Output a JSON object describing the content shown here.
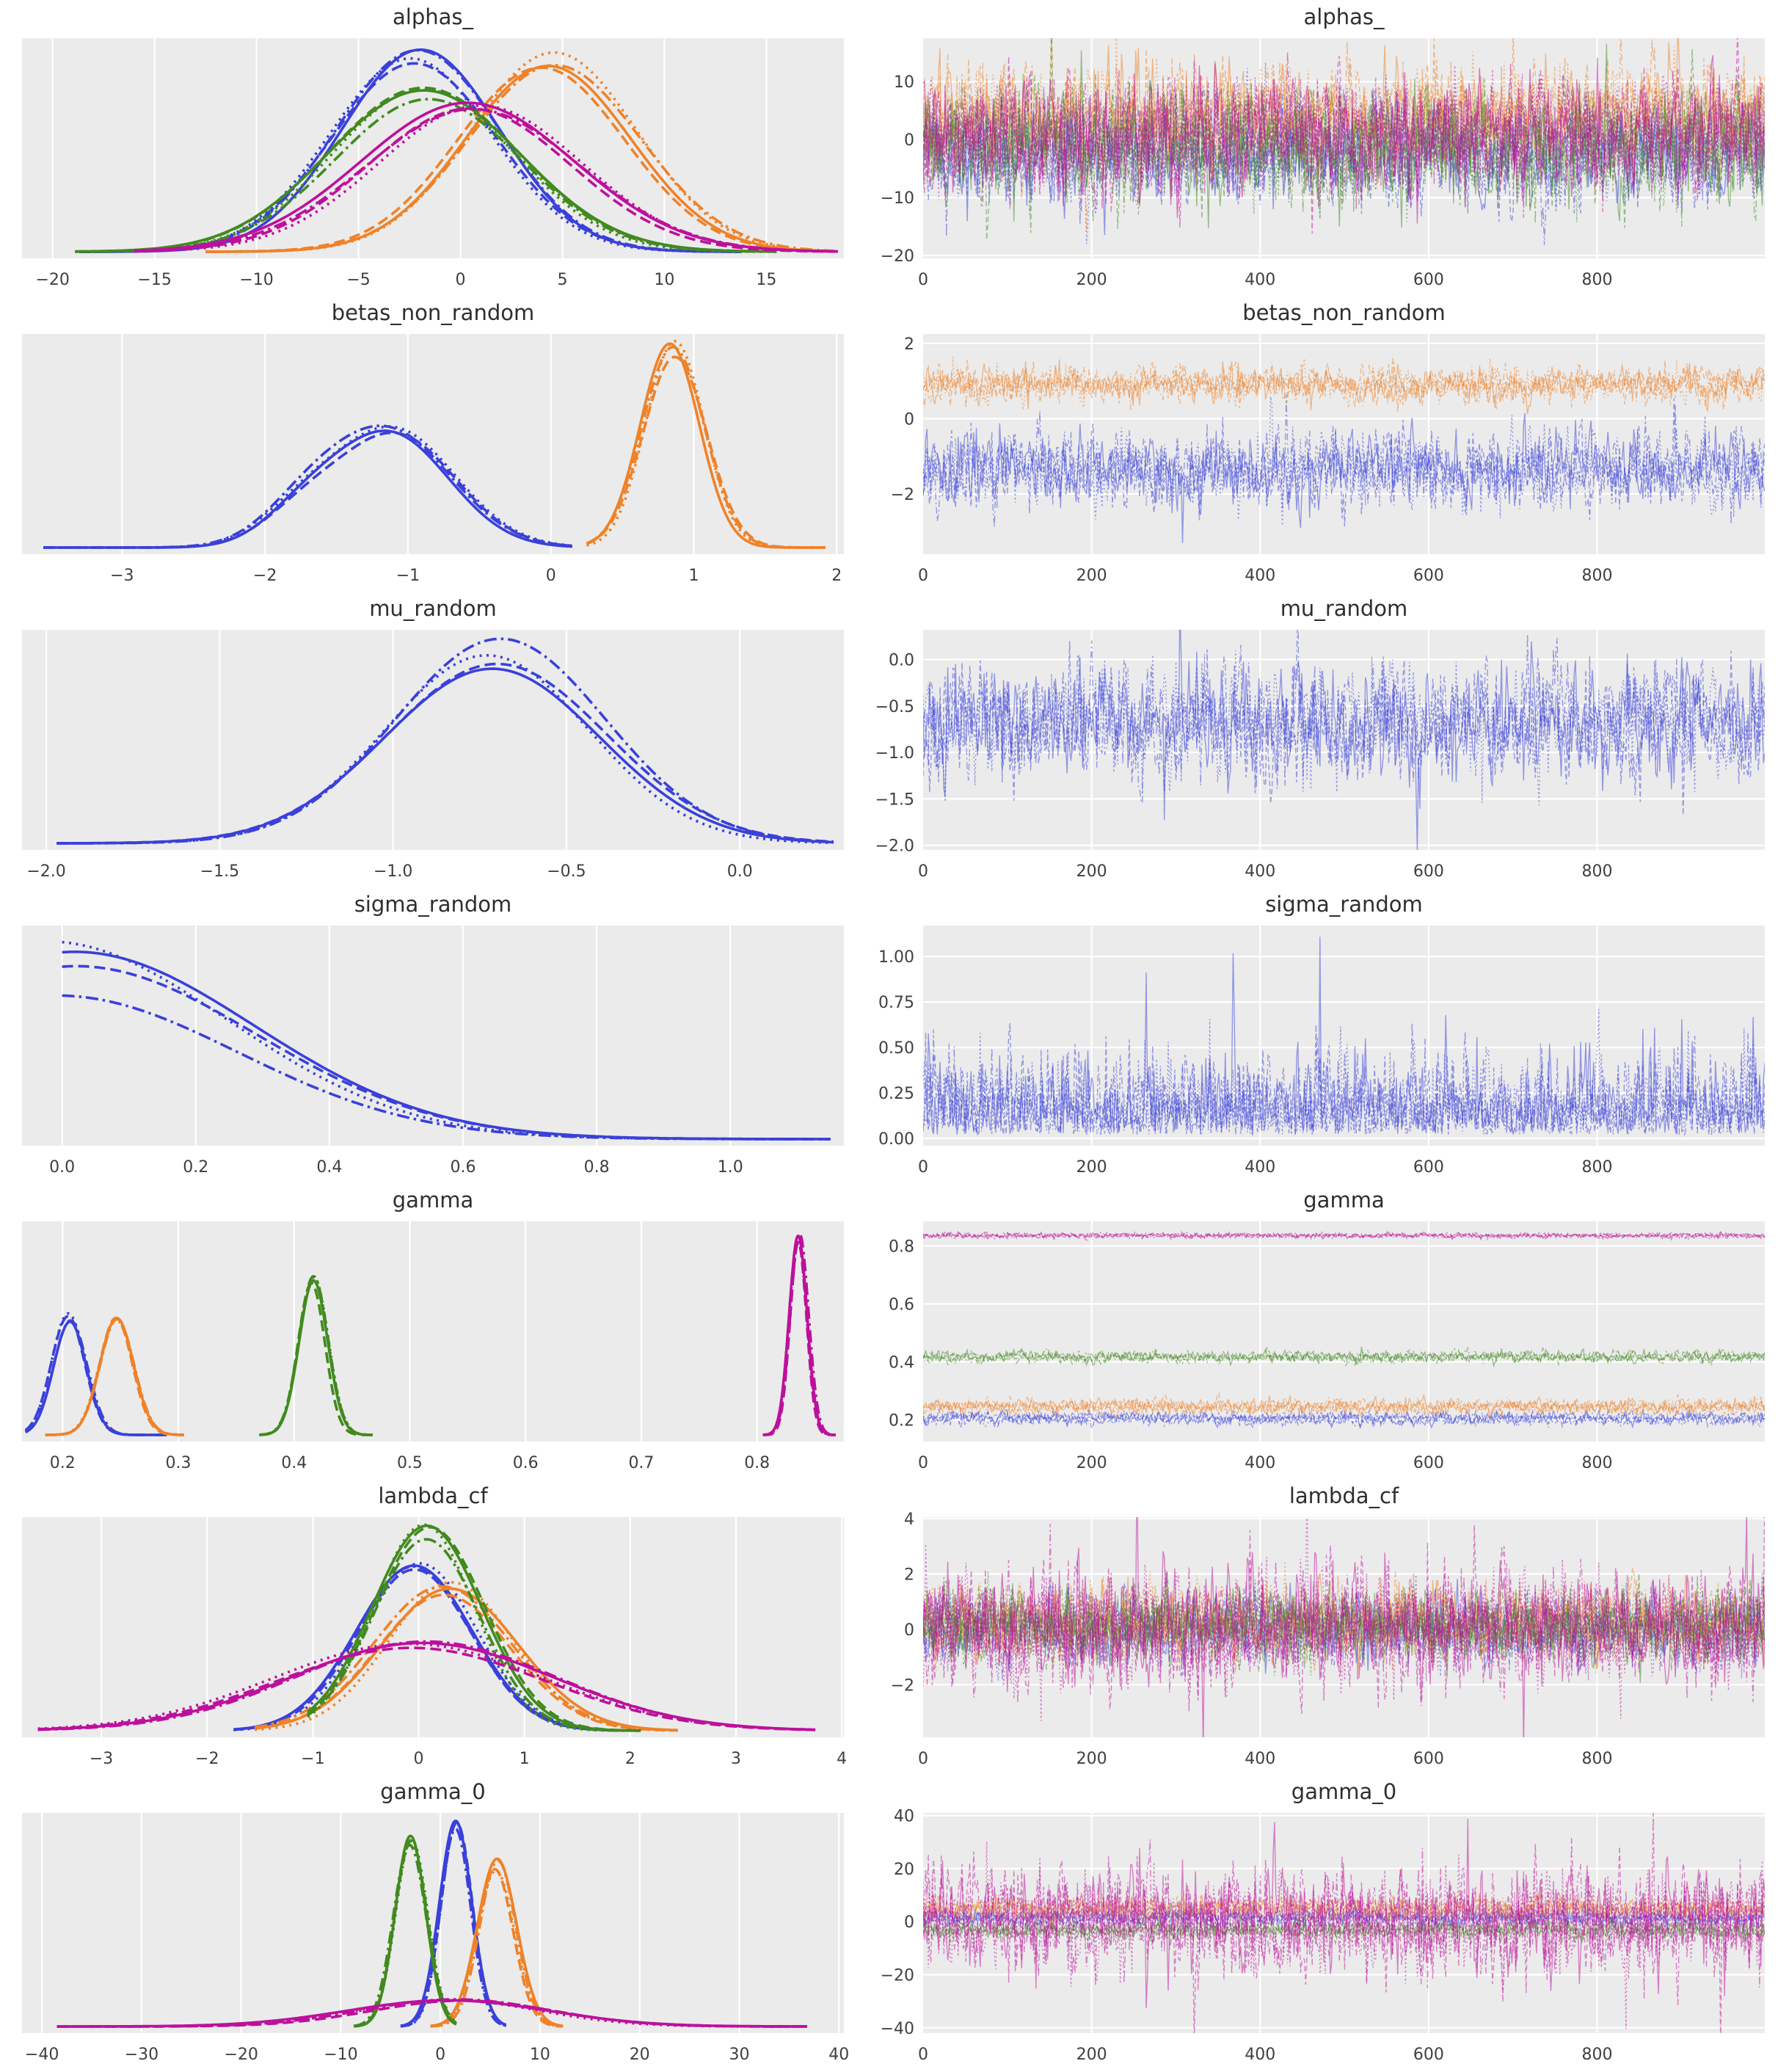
{
  "style": {
    "figure_bg": "#ffffff",
    "axes_bg": "#ebebeb",
    "grid": "#ffffff",
    "title_color": "#2e2e2e",
    "tick_color": "#3f3f3f"
  },
  "palette": {
    "blue": "#3a41d9",
    "orange": "#ef8228",
    "green": "#418a1f",
    "magenta": "#bd109c"
  },
  "linestyles": [
    "solid",
    "dashed",
    "dotted",
    "dashdot"
  ],
  "chart_data": [
    {
      "param": "alphas_",
      "kde": {
        "type": "line",
        "title": "alphas_",
        "xlim": [
          -21.5,
          18.8
        ],
        "tick_vals": [
          -20,
          -15,
          -10,
          -5,
          0,
          5,
          10,
          15
        ],
        "tick_labels": [
          "−20",
          "−15",
          "−10",
          "−5",
          "0",
          "5",
          "10",
          "15"
        ],
        "curves": [
          {
            "color": "blue",
            "components": [
              {
                "m": -2.1,
                "s": 4.0,
                "h": 1.0
              }
            ],
            "range": [
              -18.7,
              13.8
            ]
          },
          {
            "color": "orange",
            "components": [
              {
                "m": 4.2,
                "s": 4.2,
                "h": 0.97
              }
            ],
            "range": [
              -12.5,
              18.3
            ]
          },
          {
            "color": "green",
            "components": [
              {
                "m": -1.4,
                "s": 4.7,
                "h": 0.8
              }
            ],
            "range": [
              -18.9,
              15.5
            ]
          },
          {
            "color": "magenta",
            "components": [
              {
                "m": 0.7,
                "s": 5.1,
                "h": 0.76
              }
            ],
            "range": [
              -16.0,
              18.5
            ]
          }
        ]
      },
      "trace": {
        "type": "line",
        "title": "alphas_",
        "xlim": [
          0,
          999
        ],
        "tick_vals": [
          0,
          200,
          400,
          600,
          800
        ],
        "tick_labels": [
          "0",
          "200",
          "400",
          "600",
          "800"
        ],
        "ylim": [
          -20.5,
          17.5
        ],
        "ytick_vals": [
          10,
          0,
          -10,
          -20
        ],
        "ytick_labels": [
          "10",
          "0",
          "−10",
          "−20"
        ],
        "series": [
          {
            "color": "blue",
            "mean": -2.0,
            "sd": 4.4
          },
          {
            "color": "orange",
            "mean": 4.0,
            "sd": 4.4
          },
          {
            "color": "green",
            "mean": -1.5,
            "sd": 4.7,
            "spike_p": 0.01,
            "spike_mult": 1.5
          },
          {
            "color": "magenta",
            "mean": 0.8,
            "sd": 4.9,
            "spike_p": 0.01,
            "spike_mult": 1.5
          }
        ]
      }
    },
    {
      "param": "betas_non_random",
      "kde": {
        "type": "line",
        "title": "betas_non_random",
        "xlim": [
          -3.7,
          2.05
        ],
        "tick_vals": [
          -3,
          -2,
          -1,
          0,
          1,
          2
        ],
        "tick_labels": [
          "−3",
          "−2",
          "−1",
          "0",
          "1",
          "2"
        ],
        "curves": [
          {
            "color": "blue",
            "components": [
              {
                "m": -1.12,
                "s": 0.42,
                "h": 0.58
              },
              {
                "m": -1.75,
                "s": 0.28,
                "h": 0.13
              }
            ],
            "range": [
              -3.55,
              0.15
            ]
          },
          {
            "color": "orange",
            "components": [
              {
                "m": 0.85,
                "s": 0.21,
                "h": 1.0
              }
            ],
            "range": [
              0.25,
              1.92
            ]
          }
        ]
      },
      "trace": {
        "type": "line",
        "title": "betas_non_random",
        "xlim": [
          0,
          999
        ],
        "tick_vals": [
          0,
          200,
          400,
          600,
          800
        ],
        "tick_labels": [
          "0",
          "200",
          "400",
          "600",
          "800"
        ],
        "ylim": [
          -3.6,
          2.25
        ],
        "ytick_vals": [
          2,
          0,
          -2
        ],
        "ytick_labels": [
          "2",
          "0",
          "−2"
        ],
        "series": [
          {
            "color": "blue",
            "mean": -1.35,
            "sd": 0.5,
            "spike_p": 0.015,
            "spike_mult": 1.7
          },
          {
            "color": "orange",
            "mean": 0.9,
            "sd": 0.23
          }
        ]
      }
    },
    {
      "param": "mu_random",
      "kde": {
        "type": "line",
        "title": "mu_random",
        "xlim": [
          -2.07,
          0.3
        ],
        "tick_vals": [
          -2.0,
          -1.5,
          -1.0,
          -0.5,
          0.0
        ],
        "tick_labels": [
          "−2.0",
          "−1.5",
          "−1.0",
          "−0.5",
          "0.0"
        ],
        "curves": [
          {
            "color": "blue",
            "components": [
              {
                "m": -0.7,
                "s": 0.3,
                "h": 0.93
              }
            ],
            "range": [
              -1.97,
              0.27
            ],
            "style_h": {
              "solid": 0.97,
              "dashed": 0.96,
              "dotted": 1.04,
              "dashdot": 1.07
            }
          }
        ]
      },
      "trace": {
        "type": "line",
        "title": "mu_random",
        "xlim": [
          0,
          999
        ],
        "tick_vals": [
          0,
          200,
          400,
          600,
          800
        ],
        "tick_labels": [
          "0",
          "200",
          "400",
          "600",
          "800"
        ],
        "ylim": [
          -2.05,
          0.32
        ],
        "ytick_vals": [
          0.0,
          -0.5,
          -1.0,
          -1.5,
          -2.0
        ],
        "ytick_labels": [
          "0.0",
          "−0.5",
          "−1.0",
          "−1.5",
          "−2.0"
        ],
        "series": [
          {
            "color": "blue",
            "mean": -0.68,
            "sd": 0.3,
            "spike_p": 0.012,
            "spike_mult": 1.7
          }
        ]
      }
    },
    {
      "param": "sigma_random",
      "kde": {
        "type": "line",
        "title": "sigma_random",
        "xlim": [
          -0.06,
          1.17
        ],
        "tick_vals": [
          0.0,
          0.2,
          0.4,
          0.6,
          0.8,
          1.0
        ],
        "tick_labels": [
          "0.0",
          "0.2",
          "0.4",
          "0.6",
          "0.8",
          "1.0"
        ],
        "curves": [
          {
            "color": "blue",
            "components": [
              {
                "m": 0.0,
                "s": 0.26,
                "h": 0.95
              }
            ],
            "range": [
              0.0,
              1.15
            ],
            "style_h": {
              "solid": 1.0,
              "dashed": 0.95,
              "dotted": 1.07,
              "dashdot": 0.76
            }
          }
        ]
      },
      "trace": {
        "type": "line",
        "title": "sigma_random",
        "xlim": [
          0,
          999
        ],
        "tick_vals": [
          0,
          200,
          400,
          600,
          800
        ],
        "tick_labels": [
          "0",
          "200",
          "400",
          "600",
          "800"
        ],
        "ylim": [
          -0.04,
          1.17
        ],
        "ytick_vals": [
          1.0,
          0.75,
          0.5,
          0.25,
          0.0
        ],
        "ytick_labels": [
          "1.00",
          "0.75",
          "0.50",
          "0.25",
          "0.00"
        ],
        "series": [
          {
            "color": "blue",
            "dist": "halfnormal",
            "mean": 0.2,
            "base": 0.02,
            "sd": 0.2,
            "spike_p": 0.012,
            "spike_mult": 2.0
          }
        ]
      }
    },
    {
      "param": "gamma",
      "kde": {
        "type": "line",
        "title": "gamma",
        "xlim": [
          0.165,
          0.875
        ],
        "tick_vals": [
          0.2,
          0.3,
          0.4,
          0.5,
          0.6,
          0.7,
          0.8
        ],
        "tick_labels": [
          "0.2",
          "0.3",
          "0.4",
          "0.5",
          "0.6",
          "0.7",
          "0.8"
        ],
        "curves": [
          {
            "color": "blue",
            "components": [
              {
                "m": 0.206,
                "s": 0.014,
                "h": 0.6
              }
            ],
            "range": [
              0.168,
              0.29
            ]
          },
          {
            "color": "orange",
            "components": [
              {
                "m": 0.247,
                "s": 0.015,
                "h": 0.58
              }
            ],
            "range": [
              0.185,
              0.305
            ]
          },
          {
            "color": "green",
            "components": [
              {
                "m": 0.416,
                "s": 0.012,
                "h": 0.8
              }
            ],
            "range": [
              0.37,
              0.468
            ]
          },
          {
            "color": "magenta",
            "components": [
              {
                "m": 0.836,
                "s": 0.0075,
                "h": 1.0
              }
            ],
            "range": [
              0.805,
              0.868
            ]
          }
        ]
      },
      "trace": {
        "type": "line",
        "title": "gamma",
        "xlim": [
          0,
          999
        ],
        "tick_vals": [
          0,
          200,
          400,
          600,
          800
        ],
        "tick_labels": [
          "0",
          "200",
          "400",
          "600",
          "800"
        ],
        "ylim": [
          0.125,
          0.885
        ],
        "ytick_vals": [
          0.8,
          0.6,
          0.4,
          0.2
        ],
        "ytick_labels": [
          "0.8",
          "0.6",
          "0.4",
          "0.2"
        ],
        "series": [
          {
            "color": "blue",
            "mean": 0.205,
            "sd": 0.011
          },
          {
            "color": "orange",
            "mean": 0.246,
            "sd": 0.013
          },
          {
            "color": "green",
            "mean": 0.417,
            "sd": 0.01
          },
          {
            "color": "magenta",
            "mean": 0.836,
            "sd": 0.0045
          }
        ]
      }
    },
    {
      "param": "lambda_cf",
      "kde": {
        "type": "line",
        "title": "lambda_cf",
        "xlim": [
          -3.75,
          4.02
        ],
        "tick_vals": [
          -3,
          -2,
          -1,
          0,
          1,
          2,
          3,
          4
        ],
        "tick_labels": [
          "−3",
          "−2",
          "−1",
          "0",
          "1",
          "2",
          "3",
          "4"
        ],
        "curves": [
          {
            "color": "blue",
            "components": [
              {
                "m": -0.02,
                "s": 0.55,
                "h": 0.85
              }
            ],
            "range": [
              -1.75,
              1.95
            ]
          },
          {
            "color": "orange",
            "components": [
              {
                "m": 0.28,
                "s": 0.62,
                "h": 0.72
              }
            ],
            "range": [
              -1.55,
              2.45
            ]
          },
          {
            "color": "green",
            "components": [
              {
                "m": 0.1,
                "s": 0.5,
                "h": 1.0
              }
            ],
            "range": [
              -1.05,
              2.1
            ]
          },
          {
            "color": "magenta",
            "components": [
              {
                "m": -0.05,
                "s": 1.25,
                "h": 0.44
              }
            ],
            "range": [
              -3.6,
              3.75
            ]
          }
        ]
      },
      "trace": {
        "type": "line",
        "title": "lambda_cf",
        "xlim": [
          0,
          999
        ],
        "tick_vals": [
          0,
          200,
          400,
          600,
          800
        ],
        "tick_labels": [
          "0",
          "200",
          "400",
          "600",
          "800"
        ],
        "ylim": [
          -3.9,
          4.05
        ],
        "ytick_vals": [
          4,
          2,
          0,
          -2
        ],
        "ytick_labels": [
          "4",
          "2",
          "0",
          "−2"
        ],
        "series": [
          {
            "color": "blue",
            "mean": 0.0,
            "sd": 0.6
          },
          {
            "color": "orange",
            "mean": 0.25,
            "sd": 0.65
          },
          {
            "color": "green",
            "mean": 0.1,
            "sd": 0.6
          },
          {
            "color": "magenta",
            "mean": 0.0,
            "sd": 1.05,
            "spike_p": 0.02,
            "spike_mult": 2.2
          }
        ]
      }
    },
    {
      "param": "gamma_0",
      "kde": {
        "type": "line",
        "title": "gamma_0",
        "xlim": [
          -42,
          40.5
        ],
        "tick_vals": [
          -40,
          -30,
          -20,
          -10,
          0,
          10,
          20,
          30,
          40
        ],
        "tick_labels": [
          "−40",
          "−30",
          "−20",
          "−10",
          "0",
          "10",
          "20",
          "30",
          "40"
        ],
        "curves": [
          {
            "color": "blue",
            "components": [
              {
                "m": 1.5,
                "s": 1.55,
                "h": 1.0
              }
            ],
            "range": [
              -4.0,
              6.6
            ]
          },
          {
            "color": "orange",
            "components": [
              {
                "m": 5.6,
                "s": 1.9,
                "h": 0.82
              }
            ],
            "range": [
              -1.0,
              12.3
            ]
          },
          {
            "color": "green",
            "components": [
              {
                "m": -3.0,
                "s": 1.6,
                "h": 0.95
              }
            ],
            "range": [
              -8.7,
              1.6
            ]
          },
          {
            "color": "magenta",
            "components": [
              {
                "m": 1.5,
                "s": 9.5,
                "h": 0.135
              }
            ],
            "range": [
              -38.5,
              36.8
            ]
          }
        ]
      },
      "trace": {
        "type": "line",
        "title": "gamma_0",
        "xlim": [
          0,
          999
        ],
        "tick_vals": [
          0,
          200,
          400,
          600,
          800
        ],
        "tick_labels": [
          "0",
          "200",
          "400",
          "600",
          "800"
        ],
        "ylim": [
          -42,
          41
        ],
        "ytick_vals": [
          40,
          20,
          0,
          -20,
          -40
        ],
        "ytick_labels": [
          "40",
          "20",
          "0",
          "−20",
          "−40"
        ],
        "series": [
          {
            "color": "blue",
            "mean": 1.5,
            "sd": 1.7
          },
          {
            "color": "orange",
            "mean": 5.0,
            "sd": 2.2
          },
          {
            "color": "green",
            "mean": -3.0,
            "sd": 1.7
          },
          {
            "color": "magenta",
            "mean": 0.5,
            "sd": 10.0,
            "spike_p": 0.02,
            "spike_mult": 2.0
          }
        ]
      }
    }
  ]
}
